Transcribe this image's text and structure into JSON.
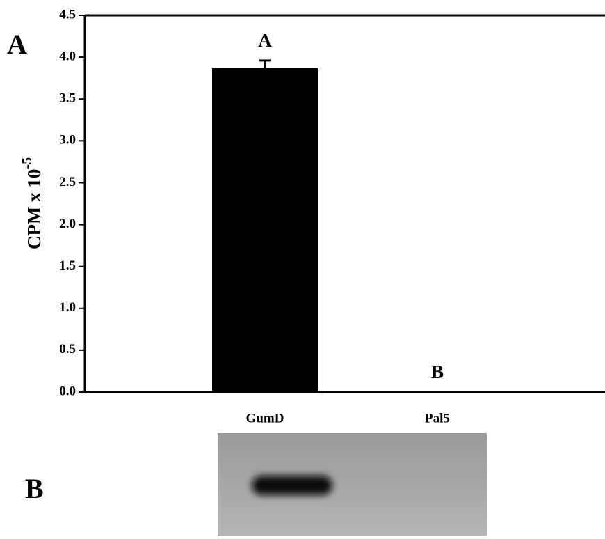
{
  "chart_data": {
    "type": "bar",
    "panel_labels": [
      "A",
      "B"
    ],
    "y_label": {
      "text": "CPM x 10",
      "superscript": "-5"
    },
    "categories": [
      "GumD",
      "Pal5"
    ],
    "values": [
      3.87,
      0
    ],
    "errors": [
      0.09,
      0
    ],
    "letters": [
      "A",
      "B"
    ],
    "color": "#000000",
    "ylim": [
      0,
      4.5
    ],
    "yticks": [
      {
        "value": 0,
        "label": "0.0"
      },
      0.5,
      {
        "value": 1,
        "label": "1.0"
      },
      1.5,
      {
        "value": 2,
        "label": "2.0"
      },
      2.5,
      {
        "value": 3,
        "label": "3.0"
      },
      3.5,
      {
        "value": 4,
        "label": "4.0"
      },
      4.5
    ]
  }
}
